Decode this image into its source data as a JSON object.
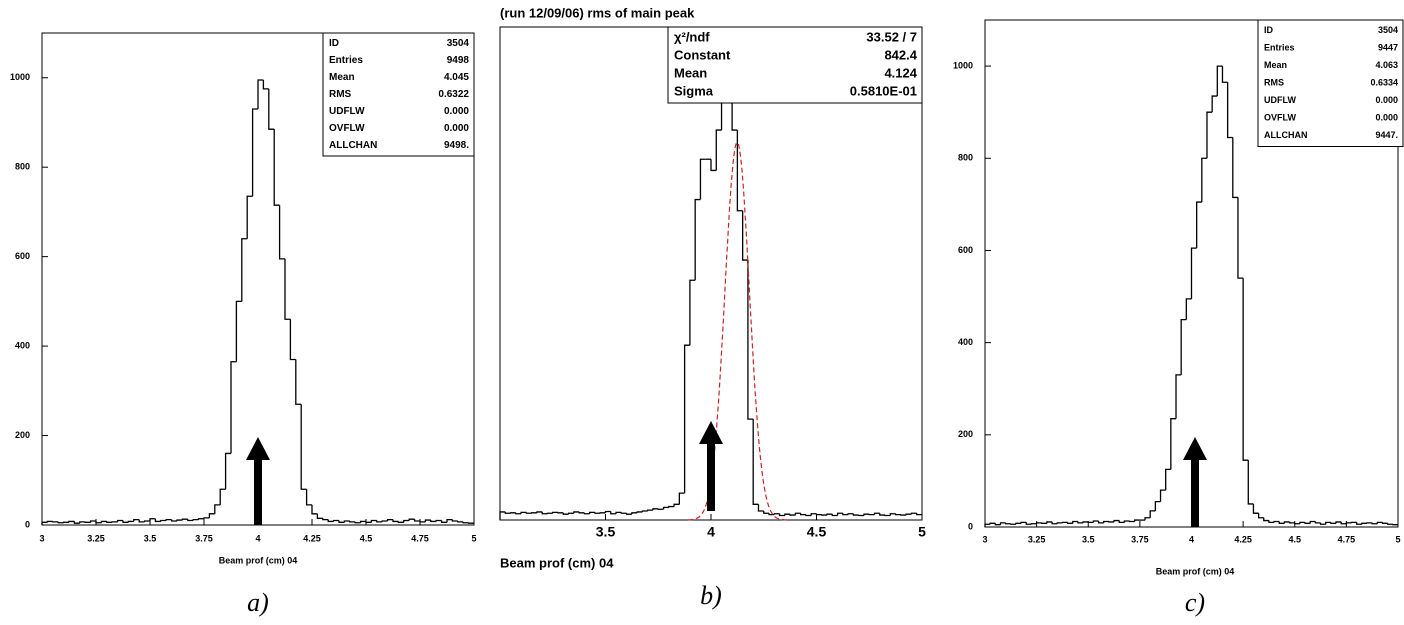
{
  "chart_data": [
    {
      "type": "histogram",
      "xlabel": "Beam prof (cm) 04",
      "caption": "a)",
      "bins": [
        3,
        3.025,
        3.05,
        3.075,
        3.1,
        3.125,
        3.15,
        3.175,
        3.2,
        3.225,
        3.25,
        3.275,
        3.3,
        3.325,
        3.35,
        3.375,
        3.4,
        3.425,
        3.45,
        3.475,
        3.5,
        3.525,
        3.55,
        3.575,
        3.6,
        3.625,
        3.65,
        3.675,
        3.7,
        3.725,
        3.75,
        3.775,
        3.8,
        3.825,
        3.85,
        3.875,
        3.9,
        3.925,
        3.95,
        3.975,
        4,
        4.025,
        4.05,
        4.075,
        4.1,
        4.125,
        4.15,
        4.175,
        4.2,
        4.225,
        4.25,
        4.275,
        4.3,
        4.325,
        4.35,
        4.375,
        4.4,
        4.425,
        4.45,
        4.475,
        4.5,
        4.525,
        4.55,
        4.575,
        4.6,
        4.625,
        4.65,
        4.675,
        4.7,
        4.725,
        4.75,
        4.775,
        4.8,
        4.825,
        4.85,
        4.875,
        4.9,
        4.925,
        4.95,
        4.975,
        5
      ],
      "counts": [
        6,
        8,
        7,
        5,
        6,
        8,
        4,
        7,
        6,
        9,
        5,
        8,
        6,
        7,
        10,
        6,
        8,
        12,
        7,
        9,
        14,
        8,
        10,
        12,
        9,
        11,
        13,
        10,
        12,
        14,
        16,
        25,
        45,
        80,
        160,
        365,
        500,
        640,
        735,
        930,
        995,
        975,
        885,
        715,
        595,
        460,
        370,
        270,
        80,
        45,
        25,
        15,
        12,
        8,
        10,
        6,
        9,
        7,
        5,
        8,
        6,
        10,
        7,
        9,
        12,
        8,
        6,
        10,
        13,
        9,
        7,
        11,
        8,
        10,
        6,
        12,
        9,
        7,
        5,
        4
      ],
      "color": "#000000",
      "xlim": [
        3,
        5
      ],
      "ylim": [
        0,
        1100
      ],
      "xticks": [
        3,
        3.25,
        3.5,
        3.75,
        4,
        4.25,
        4.5,
        4.75,
        5
      ],
      "yticks": [
        0,
        200,
        400,
        600,
        800,
        1000
      ],
      "stats": [
        {
          "name": "ID",
          "value": 3504
        },
        {
          "name": "Entries",
          "value": 9498
        },
        {
          "name": "Mean",
          "value": 4.045
        },
        {
          "name": "RMS",
          "value": 0.6322
        },
        {
          "name": "UDFLW",
          "value": {
            "value": 0,
            "label": "0.000"
          }
        },
        {
          "name": "OVFLW",
          "value": {
            "value": 0,
            "label": "0.000"
          }
        },
        {
          "name": "ALLCHAN",
          "value": {
            "value": 9498,
            "label": "9498."
          }
        }
      ]
    },
    {
      "type": "histogram",
      "title": "(run 12/09/06) rms of main peak",
      "xlabel": "Beam prof (cm) 04",
      "caption": "b)",
      "bins": [
        3,
        3.025,
        3.05,
        3.075,
        3.1,
        3.125,
        3.15,
        3.175,
        3.2,
        3.225,
        3.25,
        3.275,
        3.3,
        3.325,
        3.35,
        3.375,
        3.4,
        3.425,
        3.45,
        3.475,
        3.5,
        3.525,
        3.55,
        3.575,
        3.6,
        3.625,
        3.65,
        3.675,
        3.7,
        3.725,
        3.75,
        3.775,
        3.8,
        3.825,
        3.85,
        3.875,
        3.9,
        3.925,
        3.95,
        3.975,
        4,
        4.025,
        4.05,
        4.075,
        4.1,
        4.125,
        4.15,
        4.175,
        4.2,
        4.225,
        4.25,
        4.275,
        4.3,
        4.325,
        4.35,
        4.375,
        4.4,
        4.425,
        4.45,
        4.475,
        4.5,
        4.525,
        4.55,
        4.575,
        4.6,
        4.625,
        4.65,
        4.675,
        4.7,
        4.725,
        4.75,
        4.775,
        4.8,
        4.825,
        4.85,
        4.875,
        4.9,
        4.925,
        4.95,
        4.975,
        5
      ],
      "counts": [
        18,
        15,
        16,
        14,
        17,
        15,
        16,
        18,
        14,
        15,
        17,
        16,
        13,
        15,
        18,
        16,
        14,
        17,
        15,
        16,
        19,
        14,
        17,
        15,
        13,
        16,
        18,
        20,
        22,
        25,
        24,
        28,
        30,
        35,
        60,
        390,
        535,
        715,
        805,
        805,
        780,
        870,
        935,
        1015,
        870,
        690,
        580,
        225,
        35,
        20,
        15,
        12,
        14,
        10,
        13,
        11,
        15,
        12,
        10,
        14,
        12,
        11,
        13,
        10,
        15,
        12,
        14,
        11,
        10,
        13,
        12,
        15,
        11,
        10,
        14,
        12,
        11,
        13,
        15,
        12
      ],
      "color": "#000000",
      "fit_color": "#cc2222",
      "xlim": [
        3,
        5
      ],
      "ylim": [
        0,
        1100
      ],
      "xticks": [
        3.5,
        4,
        4.5,
        5
      ],
      "stats": [
        {
          "name": "χ²/ndf",
          "value": "33.52  /  7"
        },
        {
          "name": "Constant",
          "value": 842.4
        },
        {
          "name": "Mean",
          "value": 4.124
        },
        {
          "name": "Sigma",
          "value": {
            "value": 0.0581,
            "label": "0.5810E-01"
          }
        }
      ]
    },
    {
      "type": "histogram",
      "xlabel": "Beam prof (cm) 04",
      "caption": "c)",
      "bins": [
        3,
        3.025,
        3.05,
        3.075,
        3.1,
        3.125,
        3.15,
        3.175,
        3.2,
        3.225,
        3.25,
        3.275,
        3.3,
        3.325,
        3.35,
        3.375,
        3.4,
        3.425,
        3.45,
        3.475,
        3.5,
        3.525,
        3.55,
        3.575,
        3.6,
        3.625,
        3.65,
        3.675,
        3.7,
        3.725,
        3.75,
        3.775,
        3.8,
        3.825,
        3.85,
        3.875,
        3.9,
        3.925,
        3.95,
        3.975,
        4,
        4.025,
        4.05,
        4.075,
        4.1,
        4.125,
        4.15,
        4.175,
        4.2,
        4.225,
        4.25,
        4.275,
        4.3,
        4.325,
        4.35,
        4.375,
        4.4,
        4.425,
        4.45,
        4.475,
        4.5,
        4.525,
        4.55,
        4.575,
        4.6,
        4.625,
        4.65,
        4.675,
        4.7,
        4.725,
        4.75,
        4.775,
        4.8,
        4.825,
        4.85,
        4.875,
        4.9,
        4.925,
        4.95,
        4.975,
        5
      ],
      "counts": [
        6,
        8,
        5,
        9,
        7,
        6,
        8,
        10,
        6,
        7,
        9,
        8,
        11,
        7,
        9,
        10,
        8,
        12,
        9,
        11,
        10,
        13,
        9,
        12,
        11,
        14,
        10,
        13,
        12,
        15,
        15,
        20,
        35,
        55,
        80,
        125,
        235,
        330,
        450,
        495,
        605,
        705,
        800,
        900,
        935,
        1000,
        965,
        845,
        715,
        540,
        145,
        50,
        30,
        20,
        14,
        10,
        12,
        8,
        11,
        9,
        7,
        10,
        8,
        12,
        9,
        6,
        10,
        8,
        11,
        7,
        9,
        10,
        6,
        8,
        9,
        7,
        10,
        8,
        6,
        5
      ],
      "color": "#000000",
      "xlim": [
        3,
        5
      ],
      "ylim": [
        0,
        1100
      ],
      "xticks": [
        3,
        3.25,
        3.5,
        3.75,
        4,
        4.25,
        4.5,
        4.75,
        5
      ],
      "yticks": [
        0,
        200,
        400,
        600,
        800,
        1000
      ],
      "stats": [
        {
          "name": "ID",
          "value": 3504
        },
        {
          "name": "Entries",
          "value": 9447
        },
        {
          "name": "Mean",
          "value": 4.063
        },
        {
          "name": "RMS",
          "value": 0.6334
        },
        {
          "name": "UDFLW",
          "value": {
            "value": 0,
            "label": "0.000"
          }
        },
        {
          "name": "OVFLW",
          "value": {
            "value": 0,
            "label": "0.000"
          }
        },
        {
          "name": "ALLCHAN",
          "value": {
            "value": 9447,
            "label": "9447."
          }
        }
      ]
    }
  ]
}
